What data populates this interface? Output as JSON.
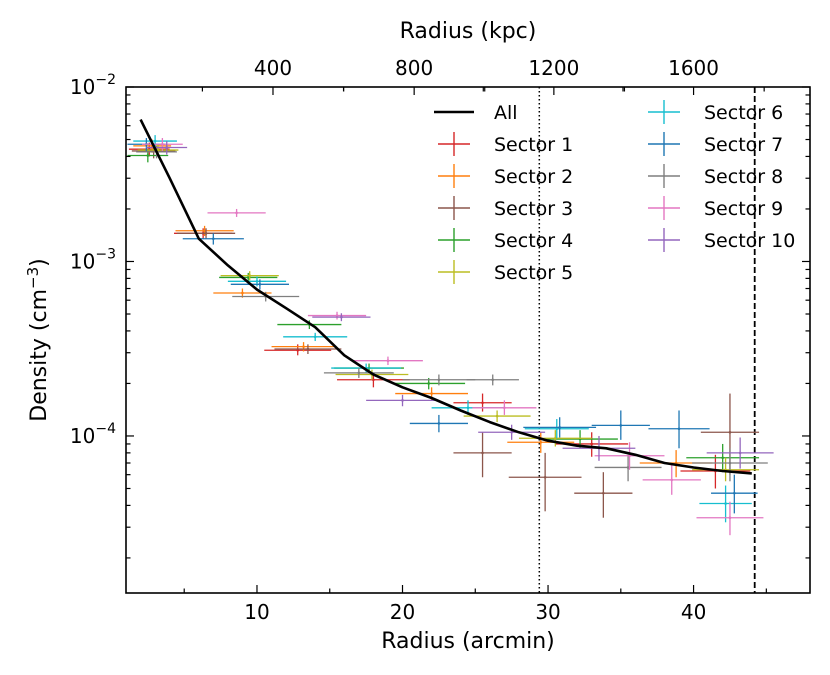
{
  "chart_data": {
    "type": "scatter",
    "title": "",
    "xlabel": "Radius (arcmin)",
    "ylabel": "Density (cm",
    "ylabel_sup": "−3",
    "ylabel_close": ")",
    "top_xlabel": "Radius (kpc)",
    "xlim": [
      1,
      48
    ],
    "ylim_log10": [
      -4.9,
      -2
    ],
    "y_scale": "log",
    "x_ticks": [
      10,
      20,
      30,
      40
    ],
    "top_x_ticks": [
      {
        "label": "400",
        "at_arcmin": 11.1
      },
      {
        "label": "800",
        "at_arcmin": 20.8
      },
      {
        "label": "1200",
        "at_arcmin": 30.4
      },
      {
        "label": "1600",
        "at_arcmin": 40.0
      }
    ],
    "y_ticks": [
      {
        "base": "10",
        "exp": "−2",
        "log10": -2
      },
      {
        "base": "10",
        "exp": "−3",
        "log10": -3
      },
      {
        "base": "10",
        "exp": "−4",
        "log10": -4
      }
    ],
    "vlines": [
      {
        "x": 29.4,
        "style": "dotted"
      },
      {
        "x": 44.2,
        "style": "dashed"
      }
    ],
    "legend_position": "top-right",
    "all_profile": {
      "name": "All",
      "color": "#000000",
      "x": [
        2,
        4,
        6,
        8,
        10,
        12,
        14,
        16,
        18,
        20,
        22,
        24,
        26,
        28,
        30,
        32,
        34,
        36,
        38,
        40,
        42,
        44
      ],
      "y": [
        0.0065,
        0.003,
        0.00135,
        0.00095,
        0.00069,
        0.00054,
        0.00042,
        0.00029,
        0.000225,
        0.00019,
        0.000165,
        0.00014,
        0.00012,
        0.000105,
        9.4e-05,
        8.8e-05,
        8.5e-05,
        7.8e-05,
        7e-05,
        6.6e-05,
        6.3e-05,
        6.1e-05
      ]
    },
    "series": [
      {
        "name": "Sector 1",
        "color": "#d62728",
        "points": [
          {
            "x": 2.6,
            "y": 0.0044,
            "xerr": 1.4,
            "ylo": 0.004,
            "yhi": 0.0048
          },
          {
            "x": 6.3,
            "y": 0.00145,
            "xerr": 2.0,
            "ylo": 0.00135,
            "yhi": 0.00155
          },
          {
            "x": 12.8,
            "y": 0.00031,
            "xerr": 2.3,
            "ylo": 0.00029,
            "yhi": 0.000335
          },
          {
            "x": 18.0,
            "y": 0.00021,
            "xerr": 2.5,
            "ylo": 0.00019,
            "yhi": 0.00023
          },
          {
            "x": 25.5,
            "y": 0.000155,
            "xerr": 2.0,
            "ylo": 0.000138,
            "yhi": 0.000175
          },
          {
            "x": 33.0,
            "y": 9e-05,
            "xerr": 2.5,
            "ylo": 7.6e-05,
            "yhi": 0.000105
          },
          {
            "x": 41.5,
            "y": 6.3e-05,
            "xerr": 2.4,
            "ylo": 5e-05,
            "yhi": 7.8e-05
          }
        ]
      },
      {
        "name": "Sector 2",
        "color": "#ff7f0e",
        "points": [
          {
            "x": 2.8,
            "y": 0.0046,
            "xerr": 1.3,
            "ylo": 0.0042,
            "yhi": 0.005
          },
          {
            "x": 6.4,
            "y": 0.0015,
            "xerr": 2.0,
            "ylo": 0.0014,
            "yhi": 0.0016
          },
          {
            "x": 9.0,
            "y": 0.00066,
            "xerr": 2.0,
            "ylo": 0.00062,
            "yhi": 0.0007
          },
          {
            "x": 13.2,
            "y": 0.000325,
            "xerr": 2.2,
            "ylo": 0.000305,
            "yhi": 0.000345
          },
          {
            "x": 22.0,
            "y": 0.000175,
            "xerr": 2.5,
            "ylo": 0.00016,
            "yhi": 0.00019
          },
          {
            "x": 29.5,
            "y": 9.2e-05,
            "xerr": 2.3,
            "ylo": 8e-05,
            "yhi": 0.000105
          },
          {
            "x": 38.8,
            "y": 7e-05,
            "xerr": 2.5,
            "ylo": 5.8e-05,
            "yhi": 8.3e-05
          }
        ]
      },
      {
        "name": "Sector 3",
        "color": "#8c564b",
        "points": [
          {
            "x": 2.9,
            "y": 0.0043,
            "xerr": 1.5,
            "ylo": 0.0039,
            "yhi": 0.0047
          },
          {
            "x": 6.5,
            "y": 0.00145,
            "xerr": 2.0,
            "ylo": 0.00135,
            "yhi": 0.00155
          },
          {
            "x": 13.5,
            "y": 0.000315,
            "xerr": 2.3,
            "ylo": 0.000295,
            "yhi": 0.000335
          },
          {
            "x": 25.5,
            "y": 8e-05,
            "xerr": 2.0,
            "ylo": 5.8e-05,
            "yhi": 0.000105
          },
          {
            "x": 29.8,
            "y": 5.8e-05,
            "xerr": 2.5,
            "ylo": 3.7e-05,
            "yhi": 8e-05
          },
          {
            "x": 33.8,
            "y": 4.7e-05,
            "xerr": 2.0,
            "ylo": 3.4e-05,
            "yhi": 6.2e-05
          },
          {
            "x": 42.5,
            "y": 0.000105,
            "xerr": 2.0,
            "ylo": 6e-05,
            "yhi": 0.000175
          }
        ]
      },
      {
        "name": "Sector 4",
        "color": "#2ca02c",
        "points": [
          {
            "x": 2.5,
            "y": 0.00405,
            "xerr": 1.4,
            "ylo": 0.0037,
            "yhi": 0.0044
          },
          {
            "x": 9.4,
            "y": 0.00081,
            "xerr": 2.0,
            "ylo": 0.00076,
            "yhi": 0.00086
          },
          {
            "x": 13.6,
            "y": 0.000435,
            "xerr": 2.2,
            "ylo": 0.00041,
            "yhi": 0.00046
          },
          {
            "x": 17.7,
            "y": 0.000245,
            "xerr": 2.4,
            "ylo": 0.00023,
            "yhi": 0.00026
          },
          {
            "x": 21.8,
            "y": 0.0002,
            "xerr": 2.5,
            "ylo": 0.000185,
            "yhi": 0.000215
          },
          {
            "x": 32.2,
            "y": 9.6e-05,
            "xerr": 2.6,
            "ylo": 8.5e-05,
            "yhi": 0.000108
          },
          {
            "x": 42.0,
            "y": 7.5e-05,
            "xerr": 2.5,
            "ylo": 6.2e-05,
            "yhi": 9e-05
          }
        ]
      },
      {
        "name": "Sector 5",
        "color": "#bcbd22",
        "points": [
          {
            "x": 3.2,
            "y": 0.00435,
            "xerr": 1.4,
            "ylo": 0.004,
            "yhi": 0.0047
          },
          {
            "x": 9.5,
            "y": 0.00083,
            "xerr": 2.0,
            "ylo": 0.00078,
            "yhi": 0.00088
          },
          {
            "x": 17.9,
            "y": 0.000225,
            "xerr": 2.5,
            "ylo": 0.00021,
            "yhi": 0.00024
          },
          {
            "x": 26.5,
            "y": 0.00013,
            "xerr": 2.3,
            "ylo": 0.00012,
            "yhi": 0.00014
          },
          {
            "x": 30.5,
            "y": 9.7e-05,
            "xerr": 2.5,
            "ylo": 8.7e-05,
            "yhi": 0.000108
          },
          {
            "x": 42.2,
            "y": 6.4e-05,
            "xerr": 2.3,
            "ylo": 5.5e-05,
            "yhi": 7.5e-05
          }
        ]
      },
      {
        "name": "Sector 6",
        "color": "#17becf",
        "points": [
          {
            "x": 3.0,
            "y": 0.0049,
            "xerr": 1.5,
            "ylo": 0.0045,
            "yhi": 0.0053
          },
          {
            "x": 10.0,
            "y": 0.00077,
            "xerr": 2.0,
            "ylo": 0.00072,
            "yhi": 0.00082
          },
          {
            "x": 14.0,
            "y": 0.00037,
            "xerr": 2.2,
            "ylo": 0.00035,
            "yhi": 0.00039
          },
          {
            "x": 17.5,
            "y": 0.000245,
            "xerr": 2.4,
            "ylo": 0.00023,
            "yhi": 0.00026
          },
          {
            "x": 24.5,
            "y": 0.000145,
            "xerr": 2.5,
            "ylo": 0.000132,
            "yhi": 0.00016
          },
          {
            "x": 30.6,
            "y": 0.00011,
            "xerr": 2.2,
            "ylo": 9.7e-05,
            "yhi": 0.000125
          },
          {
            "x": 42.2,
            "y": 4.1e-05,
            "xerr": 1.8,
            "ylo": 3.2e-05,
            "yhi": 5.2e-05
          }
        ]
      },
      {
        "name": "Sector 7",
        "color": "#1f77b4",
        "points": [
          {
            "x": 2.4,
            "y": 0.0047,
            "xerr": 1.3,
            "ylo": 0.0043,
            "yhi": 0.0051
          },
          {
            "x": 7.0,
            "y": 0.00135,
            "xerr": 2.1,
            "ylo": 0.00125,
            "yhi": 0.00145
          },
          {
            "x": 10.2,
            "y": 0.00074,
            "xerr": 2.0,
            "ylo": 0.00069,
            "yhi": 0.00079
          },
          {
            "x": 22.5,
            "y": 0.000118,
            "xerr": 2.0,
            "ylo": 0.000105,
            "yhi": 0.000132
          },
          {
            "x": 30.8,
            "y": 0.000112,
            "xerr": 2.5,
            "ylo": 9.8e-05,
            "yhi": 0.000128
          },
          {
            "x": 35.0,
            "y": 0.000115,
            "xerr": 2.0,
            "ylo": 9.5e-05,
            "yhi": 0.00014
          },
          {
            "x": 39.0,
            "y": 0.00011,
            "xerr": 2.1,
            "ylo": 8.5e-05,
            "yhi": 0.00014
          },
          {
            "x": 42.8,
            "y": 4.7e-05,
            "xerr": 1.6,
            "ylo": 3.6e-05,
            "yhi": 6e-05
          }
        ]
      },
      {
        "name": "Sector 8",
        "color": "#7f7f7f",
        "points": [
          {
            "x": 3.1,
            "y": 0.00425,
            "xerr": 1.4,
            "ylo": 0.0039,
            "yhi": 0.0046
          },
          {
            "x": 10.6,
            "y": 0.00063,
            "xerr": 2.3,
            "ylo": 0.00059,
            "yhi": 0.00067
          },
          {
            "x": 17.0,
            "y": 0.00023,
            "xerr": 2.4,
            "ylo": 0.000215,
            "yhi": 0.000245
          },
          {
            "x": 22.5,
            "y": 0.00021,
            "xerr": 2.5,
            "ylo": 0.000195,
            "yhi": 0.000225
          },
          {
            "x": 26.2,
            "y": 0.00021,
            "xerr": 1.8,
            "ylo": 0.000195,
            "yhi": 0.000225
          },
          {
            "x": 35.5,
            "y": 6.6e-05,
            "xerr": 2.3,
            "ylo": 5.5e-05,
            "yhi": 7.8e-05
          },
          {
            "x": 42.5,
            "y": 7e-05,
            "xerr": 2.6,
            "ylo": 5.5e-05,
            "yhi": 8.5e-05
          }
        ]
      },
      {
        "name": "Sector 9",
        "color": "#e377c2",
        "points": [
          {
            "x": 3.5,
            "y": 0.0047,
            "xerr": 1.4,
            "ylo": 0.0043,
            "yhi": 0.0051
          },
          {
            "x": 8.6,
            "y": 0.0019,
            "xerr": 2.0,
            "ylo": 0.0018,
            "yhi": 0.002
          },
          {
            "x": 15.5,
            "y": 0.00049,
            "xerr": 2.0,
            "ylo": 0.000465,
            "yhi": 0.000515
          },
          {
            "x": 19.0,
            "y": 0.00027,
            "xerr": 2.4,
            "ylo": 0.000255,
            "yhi": 0.000285
          },
          {
            "x": 27.0,
            "y": 0.000145,
            "xerr": 2.2,
            "ylo": 0.000132,
            "yhi": 0.00016
          },
          {
            "x": 35.6,
            "y": 7.7e-05,
            "xerr": 2.4,
            "ylo": 6.4e-05,
            "yhi": 9.2e-05
          },
          {
            "x": 38.5,
            "y": 5.6e-05,
            "xerr": 2.0,
            "ylo": 4.6e-05,
            "yhi": 6.8e-05
          },
          {
            "x": 42.5,
            "y": 3.4e-05,
            "xerr": 2.3,
            "ylo": 2.7e-05,
            "yhi": 4.2e-05
          }
        ]
      },
      {
        "name": "Sector 10",
        "color": "#9467bd",
        "points": [
          {
            "x": 3.8,
            "y": 0.0045,
            "xerr": 1.4,
            "ylo": 0.0041,
            "yhi": 0.0049
          },
          {
            "x": 15.8,
            "y": 0.00048,
            "xerr": 2.0,
            "ylo": 0.000455,
            "yhi": 0.000505
          },
          {
            "x": 20.0,
            "y": 0.00016,
            "xerr": 2.5,
            "ylo": 0.000148,
            "yhi": 0.000172
          },
          {
            "x": 27.5,
            "y": 0.000105,
            "xerr": 2.3,
            "ylo": 9.5e-05,
            "yhi": 0.000116
          },
          {
            "x": 33.5,
            "y": 8.5e-05,
            "xerr": 2.5,
            "ylo": 7.2e-05,
            "yhi": 0.0001
          },
          {
            "x": 43.2,
            "y": 8e-05,
            "xerr": 2.3,
            "ylo": 6.5e-05,
            "yhi": 9.8e-05
          }
        ]
      }
    ]
  }
}
